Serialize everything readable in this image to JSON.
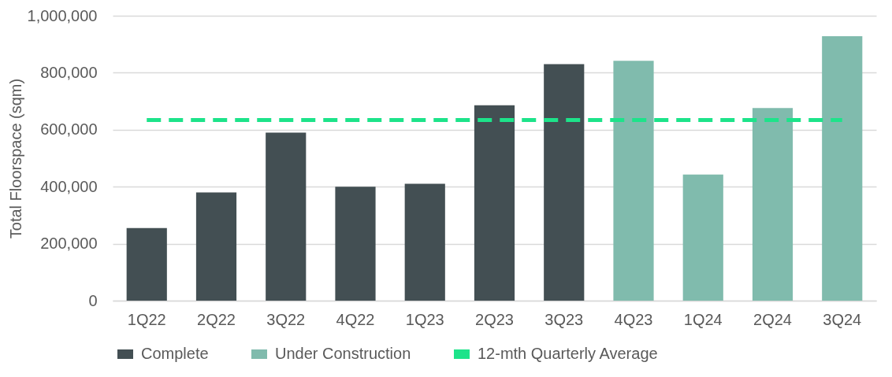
{
  "chart_data": {
    "type": "bar",
    "ylabel": "Total Floorspace (sqm)",
    "categories": [
      "1Q22",
      "2Q22",
      "3Q22",
      "4Q22",
      "1Q23",
      "2Q23",
      "3Q23",
      "4Q23",
      "1Q24",
      "2Q24",
      "3Q24"
    ],
    "series": [
      {
        "name": "Complete",
        "color": "#434f53",
        "values": [
          255000,
          380000,
          590000,
          400000,
          410000,
          686000,
          830000,
          null,
          null,
          null,
          null
        ]
      },
      {
        "name": "Under Construction",
        "color": "#80bbad",
        "values": [
          null,
          null,
          null,
          null,
          null,
          null,
          null,
          842000,
          443000,
          676000,
          928000
        ]
      },
      {
        "name": "12-mth Quarterly Average",
        "type": "line",
        "line_style": "dashed",
        "marker": "none",
        "color": "#1de38a",
        "values": [
          634000,
          634000,
          634000,
          634000,
          634000,
          634000,
          634000,
          634000,
          634000,
          634000,
          634000
        ]
      }
    ],
    "ylim": [
      0,
      1000000
    ],
    "yticks": [
      0,
      {
        "value": 200000,
        "label": "200,000"
      },
      {
        "value": 400000,
        "label": "400,000"
      },
      {
        "value": 600000,
        "label": "600,000"
      },
      {
        "value": 800000,
        "label": "800,000"
      },
      {
        "value": 1000000,
        "label": "1,000,000"
      }
    ],
    "grid": "y",
    "legend": "bottom"
  }
}
